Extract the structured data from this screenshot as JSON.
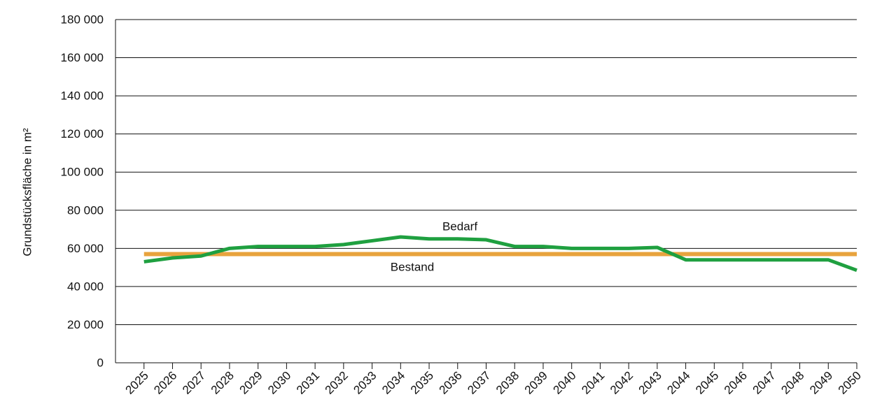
{
  "chart_data": {
    "type": "line",
    "y_label": "Grundstücksfläche in m²",
    "x": [
      2025,
      2026,
      2027,
      2028,
      2029,
      2030,
      2031,
      2032,
      2033,
      2034,
      2035,
      2036,
      2037,
      2038,
      2039,
      2040,
      2041,
      2042,
      2043,
      2044,
      2045,
      2046,
      2047,
      2048,
      2049,
      2050
    ],
    "xlim": [
      2024,
      2050
    ],
    "xticks": [
      2025,
      2026,
      2027,
      2028,
      2029,
      2030,
      2031,
      2032,
      2033,
      2034,
      2035,
      2036,
      2037,
      2038,
      2039,
      2040,
      2041,
      2042,
      2043,
      2044,
      2045,
      2046,
      2047,
      2048,
      2049,
      2050
    ],
    "ylim": [
      0,
      180000
    ],
    "yticks": [
      0,
      {
        "value": 20000,
        "label": "20 000"
      },
      {
        "value": 40000,
        "label": "40 000"
      },
      {
        "value": 60000,
        "label": "60 000"
      },
      {
        "value": 80000,
        "label": "80 000"
      },
      {
        "value": 100000,
        "label": "100 000"
      },
      {
        "value": 120000,
        "label": "120 000"
      },
      {
        "value": 140000,
        "label": "140 000"
      },
      {
        "value": 160000,
        "label": "160 000"
      },
      {
        "value": 180000,
        "label": "180 000"
      }
    ],
    "grid": true,
    "series": [
      {
        "name": "Bestand",
        "color": "#e8a33d",
        "values": [
          57000,
          57000,
          57000,
          57000,
          57000,
          57000,
          57000,
          57000,
          57000,
          57000,
          57000,
          57000,
          57000,
          57000,
          57000,
          57000,
          57000,
          57000,
          57000,
          57000,
          57000,
          57000,
          57000,
          57000,
          57000,
          57000
        ]
      },
      {
        "name": "Bedarf",
        "color": "#1fa040",
        "values": [
          53000,
          55000,
          56000,
          60000,
          61000,
          61000,
          61000,
          62000,
          64000,
          66000,
          65000,
          65000,
          64500,
          61000,
          61000,
          60000,
          60000,
          60000,
          60500,
          54000,
          54000,
          54000,
          54000,
          54000,
          54000,
          48500
        ]
      }
    ]
  }
}
